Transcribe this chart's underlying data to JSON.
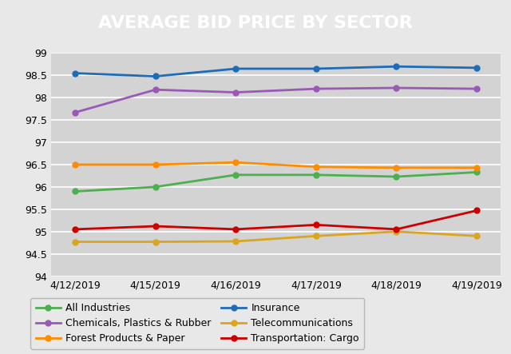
{
  "title": "AVERAGE BID PRICE BY SECTOR",
  "x_labels": [
    "4/12/2019",
    "4/15/2019",
    "4/16/2019",
    "4/17/2019",
    "4/18/2019",
    "4/19/2019"
  ],
  "series": [
    {
      "name": "All Industries",
      "color": "#4CAF50",
      "values": [
        95.9,
        96.0,
        96.27,
        96.27,
        96.23,
        96.33
      ]
    },
    {
      "name": "Chemicals, Plastics & Rubber",
      "color": "#9B59B6",
      "values": [
        97.67,
        98.18,
        98.12,
        98.2,
        98.22,
        98.2
      ]
    },
    {
      "name": "Forest Products & Paper",
      "color": "#FF8C00",
      "values": [
        96.5,
        96.5,
        96.55,
        96.45,
        96.43,
        96.43
      ]
    },
    {
      "name": "Insurance",
      "color": "#1E6BB8",
      "values": [
        98.55,
        98.48,
        98.65,
        98.65,
        98.7,
        98.67
      ]
    },
    {
      "name": "Telecommunications",
      "color": "#DAA520",
      "values": [
        94.77,
        94.77,
        94.78,
        94.9,
        95.0,
        94.9
      ]
    },
    {
      "name": "Transportation: Cargo",
      "color": "#CC0000",
      "values": [
        95.05,
        95.12,
        95.05,
        95.15,
        95.05,
        95.47
      ]
    }
  ],
  "ylim": [
    94.0,
    99.0
  ],
  "yticks": [
    94.0,
    94.5,
    95.0,
    95.5,
    96.0,
    96.5,
    97.0,
    97.5,
    98.0,
    98.5,
    99.0
  ],
  "background_color": "#E8E8E8",
  "title_bg_color": "#1B4F6E",
  "title_color": "#FFFFFF",
  "plot_bg_color": "#D3D3D3",
  "grid_color": "#FFFFFF",
  "legend_cols": 2,
  "title_fontsize": 16,
  "tick_fontsize": 9,
  "legend_fontsize": 9
}
